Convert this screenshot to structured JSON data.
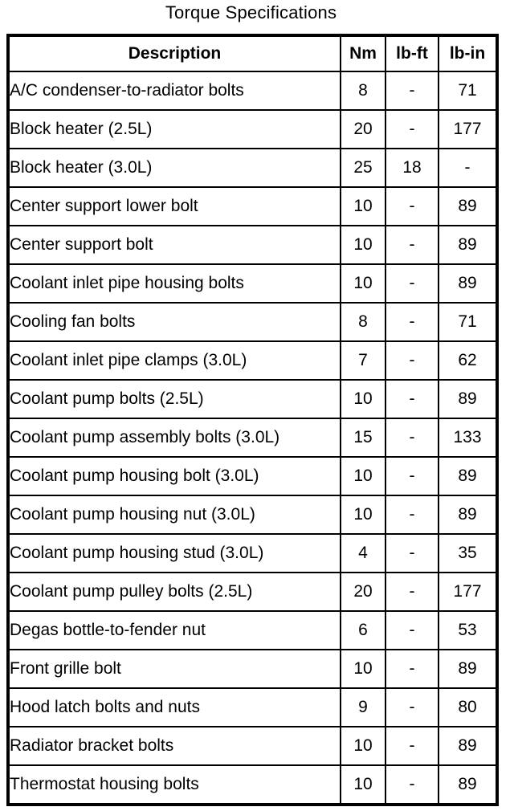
{
  "page": {
    "title": "Torque Specifications"
  },
  "colors": {
    "background": "#ffffff",
    "text": "#000000",
    "border": "#000000"
  },
  "table": {
    "columns": [
      "Description",
      "Nm",
      "lb-ft",
      "lb-in"
    ],
    "rows": [
      {
        "description": "A/C condenser-to-radiator bolts",
        "nm": "8",
        "lb_ft": "-",
        "lb_in": "71"
      },
      {
        "description": "Block heater (2.5L)",
        "nm": "20",
        "lb_ft": "-",
        "lb_in": "177"
      },
      {
        "description": "Block heater (3.0L)",
        "nm": "25",
        "lb_ft": "18",
        "lb_in": "-"
      },
      {
        "description": "Center support lower bolt",
        "nm": "10",
        "lb_ft": "-",
        "lb_in": "89"
      },
      {
        "description": "Center support bolt",
        "nm": "10",
        "lb_ft": "-",
        "lb_in": "89"
      },
      {
        "description": "Coolant inlet pipe housing bolts",
        "nm": "10",
        "lb_ft": "-",
        "lb_in": "89"
      },
      {
        "description": "Cooling fan bolts",
        "nm": "8",
        "lb_ft": "-",
        "lb_in": "71"
      },
      {
        "description": "Coolant inlet pipe clamps (3.0L)",
        "nm": "7",
        "lb_ft": "-",
        "lb_in": "62"
      },
      {
        "description": "Coolant pump bolts (2.5L)",
        "nm": "10",
        "lb_ft": "-",
        "lb_in": "89"
      },
      {
        "description": "Coolant pump assembly bolts (3.0L)",
        "nm": "15",
        "lb_ft": "-",
        "lb_in": "133"
      },
      {
        "description": "Coolant pump housing bolt (3.0L)",
        "nm": "10",
        "lb_ft": "-",
        "lb_in": "89"
      },
      {
        "description": "Coolant pump housing nut (3.0L)",
        "nm": "10",
        "lb_ft": "-",
        "lb_in": "89"
      },
      {
        "description": "Coolant pump housing stud (3.0L)",
        "nm": "4",
        "lb_ft": "-",
        "lb_in": "35"
      },
      {
        "description": "Coolant pump pulley bolts (2.5L)",
        "nm": "20",
        "lb_ft": "-",
        "lb_in": "177"
      },
      {
        "description": "Degas bottle-to-fender nut",
        "nm": "6",
        "lb_ft": "-",
        "lb_in": "53"
      },
      {
        "description": "Front grille bolt",
        "nm": "10",
        "lb_ft": "-",
        "lb_in": "89"
      },
      {
        "description": "Hood latch bolts and nuts",
        "nm": "9",
        "lb_ft": "-",
        "lb_in": "80"
      },
      {
        "description": "Radiator bracket bolts",
        "nm": "10",
        "lb_ft": "-",
        "lb_in": "89"
      },
      {
        "description": "Thermostat housing bolts",
        "nm": "10",
        "lb_ft": "-",
        "lb_in": "89"
      }
    ]
  }
}
